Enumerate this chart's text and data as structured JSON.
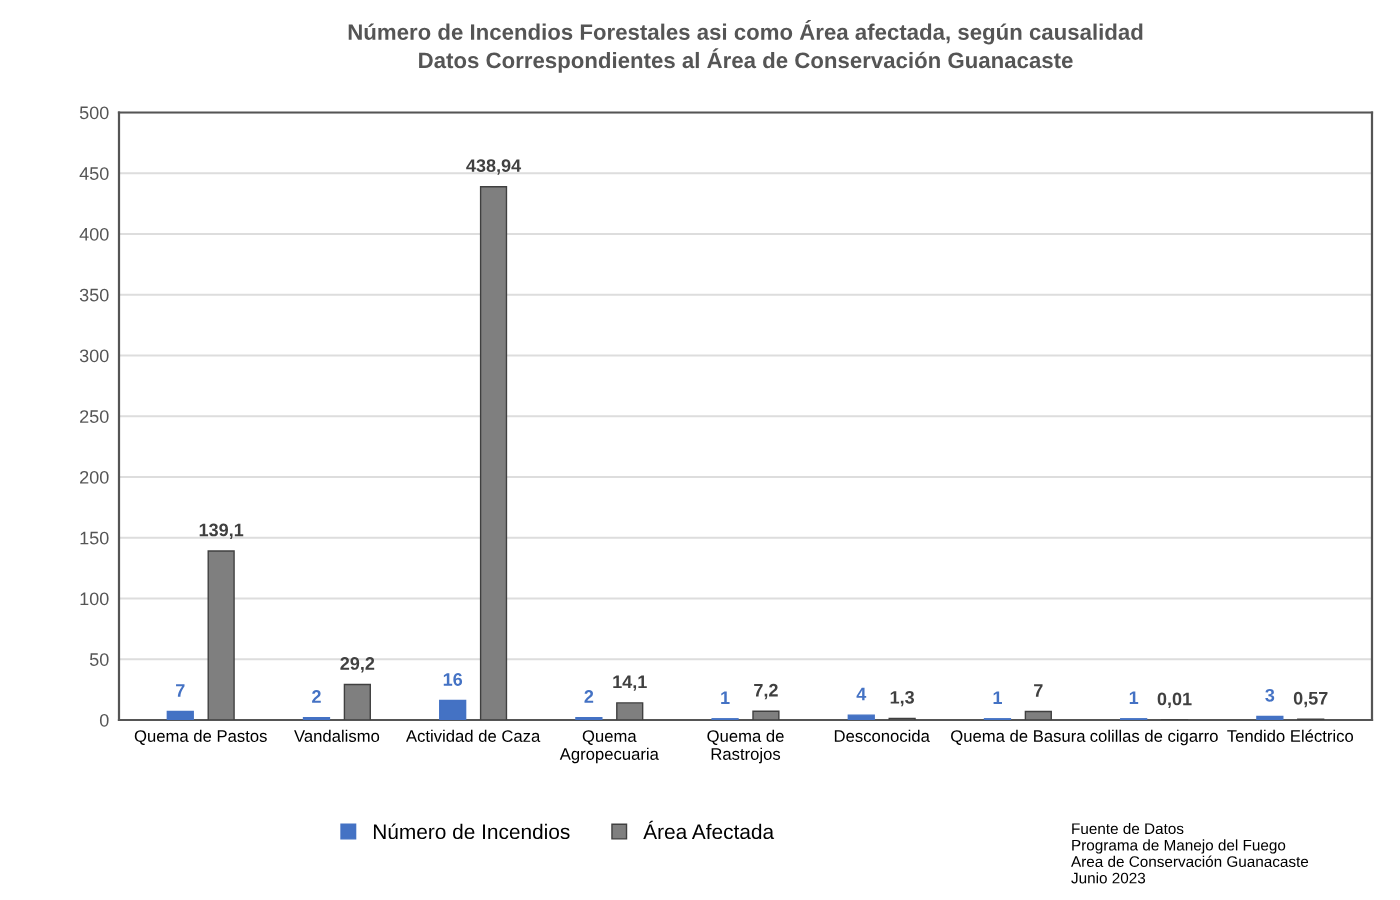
{
  "chart_data": {
    "type": "bar",
    "title": "Número de Incendios Forestales asi como Área afectada, según causalidad\nDatos Correspondientes al Área de Conservación Guanacaste",
    "categories": [
      "Quema de Pastos",
      "Vandalismo",
      "Actividad de Caza",
      "Quema\nAgropecuaria",
      "Quema de\nRastrojos",
      "Desconocida",
      "Quema de Basura",
      "colillas de cigarro",
      "Tendido Eléctrico"
    ],
    "series": [
      {
        "name": "Número de Incendios",
        "color": "#4472c4",
        "values": [
          7,
          2,
          16,
          2,
          1,
          4,
          1,
          1,
          3
        ],
        "value_labels": [
          "7",
          "2",
          "16",
          "2",
          "1",
          "4",
          "1",
          "1",
          "3"
        ]
      },
      {
        "name": "Área Afectada",
        "color": "#7f7f7f",
        "values": [
          139.1,
          29.2,
          438.94,
          14.1,
          7.2,
          1.3,
          7,
          0.01,
          0.57
        ],
        "value_labels": [
          "139,1",
          "29,2",
          "438,94",
          "14,1",
          "7,2",
          "1,3",
          "7",
          "0,01",
          "0,57"
        ]
      }
    ],
    "ylim": [
      0,
      500
    ],
    "yticks": [
      0,
      50,
      100,
      150,
      200,
      250,
      300,
      350,
      400,
      450,
      500
    ],
    "grid": "y",
    "legend": "bottom",
    "annotations": [
      "Fuente de Datos\nPrograma de Manejo del Fuego\nArea de Conservación Guanacaste\nJunio 2023"
    ]
  }
}
